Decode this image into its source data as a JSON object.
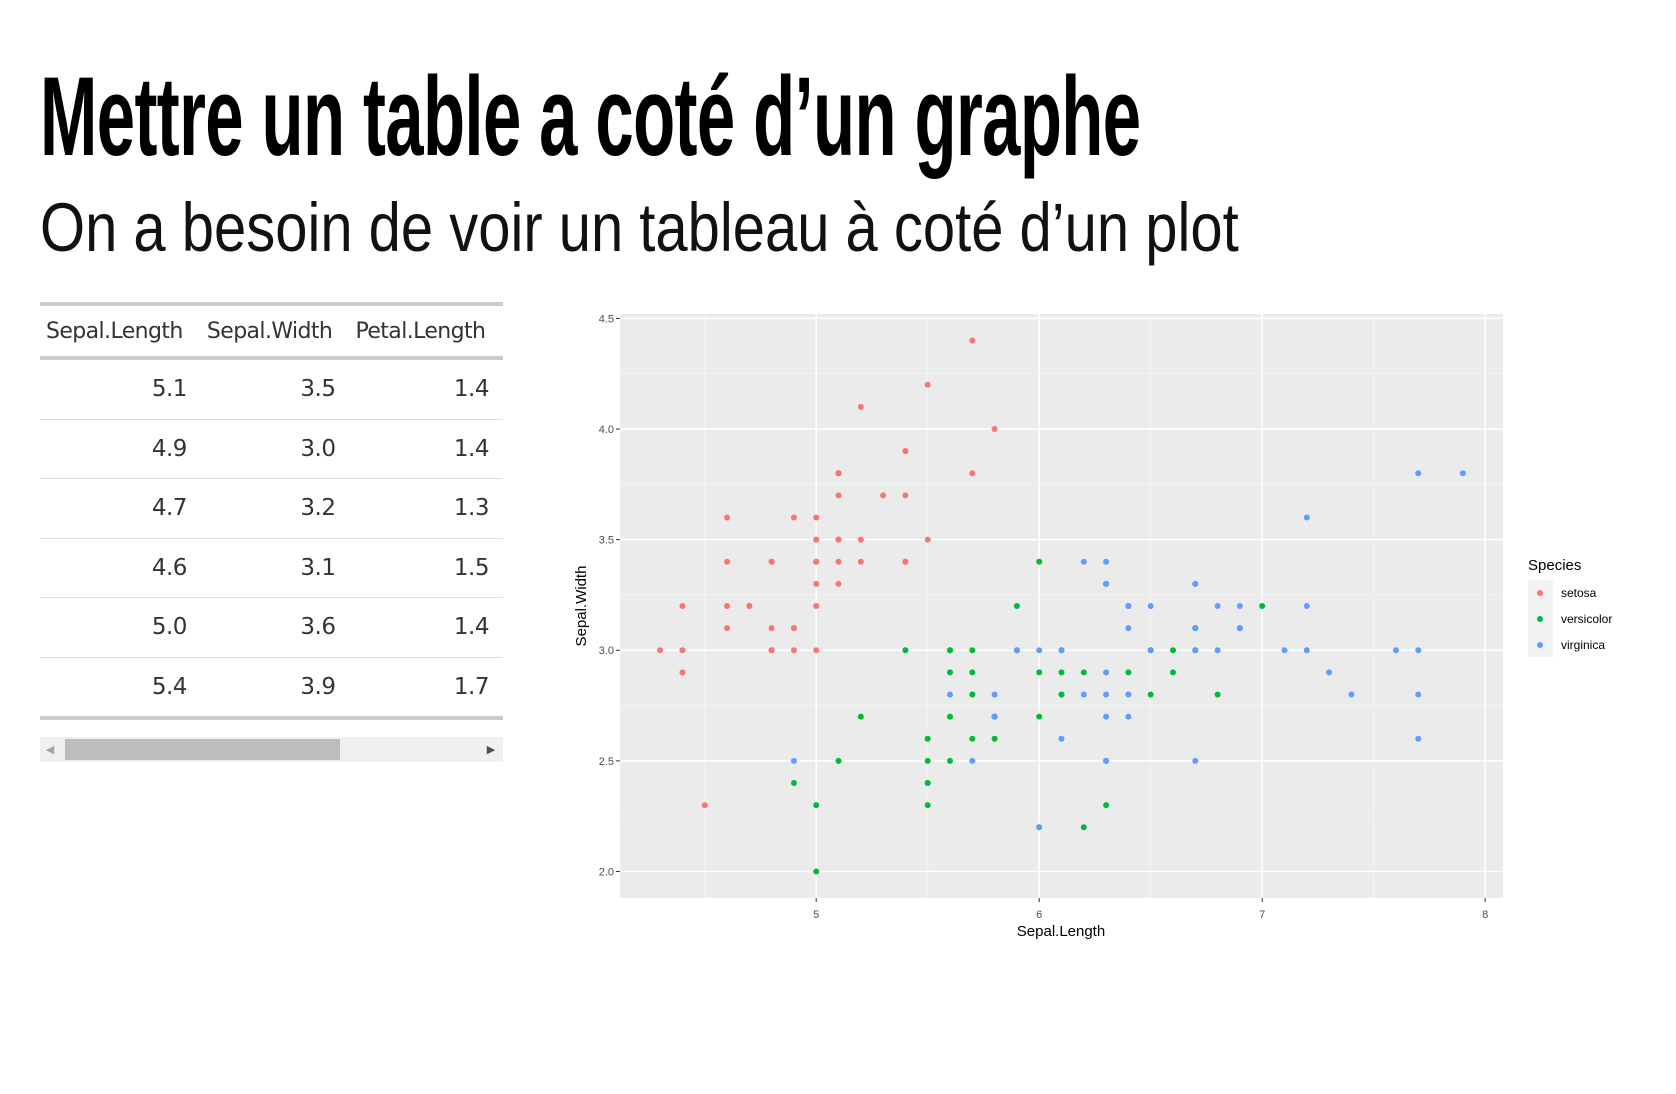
{
  "slide": {
    "title": "Mettre un table a coté d’un graphe",
    "subtitle": "On a besoin de voir un tableau à coté d’un plot"
  },
  "table": {
    "columns": [
      "Sepal.Length",
      "Sepal.Width",
      "Petal.Length"
    ],
    "rows": [
      [
        "5.1",
        "3.5",
        "1.4"
      ],
      [
        "4.9",
        "3.0",
        "1.4"
      ],
      [
        "4.7",
        "3.2",
        "1.3"
      ],
      [
        "4.6",
        "3.1",
        "1.5"
      ],
      [
        "5.0",
        "3.6",
        "1.4"
      ],
      [
        "5.4",
        "3.9",
        "1.7"
      ]
    ],
    "scroll_left_icon": "triangle-left",
    "scroll_right_icon": "triangle-right"
  },
  "chart_data": {
    "type": "scatter",
    "xlabel": "Sepal.Length",
    "ylabel": "Sepal.Width",
    "xlim": [
      4.12,
      8.08
    ],
    "ylim": [
      1.88,
      4.52
    ],
    "xticks": [
      "5",
      "6",
      "7",
      "8"
    ],
    "yticks": [
      "2.0",
      "2.5",
      "3.0",
      "3.5",
      "4.0",
      "4.5"
    ],
    "grid": true,
    "legend": {
      "title": "Species",
      "position": "right"
    },
    "panel_color": "#EBEBEB",
    "series": [
      {
        "name": "setosa",
        "color": "#F8766D",
        "points": [
          [
            5.1,
            3.5
          ],
          [
            4.9,
            3.0
          ],
          [
            4.7,
            3.2
          ],
          [
            4.6,
            3.1
          ],
          [
            5.0,
            3.6
          ],
          [
            5.4,
            3.9
          ],
          [
            4.6,
            3.4
          ],
          [
            5.0,
            3.4
          ],
          [
            4.4,
            2.9
          ],
          [
            4.9,
            3.1
          ],
          [
            5.4,
            3.7
          ],
          [
            4.8,
            3.4
          ],
          [
            4.8,
            3.0
          ],
          [
            4.3,
            3.0
          ],
          [
            5.8,
            4.0
          ],
          [
            5.7,
            4.4
          ],
          [
            5.4,
            3.9
          ],
          [
            5.1,
            3.5
          ],
          [
            5.7,
            3.8
          ],
          [
            5.1,
            3.8
          ],
          [
            5.4,
            3.4
          ],
          [
            5.1,
            3.7
          ],
          [
            4.6,
            3.6
          ],
          [
            5.1,
            3.3
          ],
          [
            4.8,
            3.4
          ],
          [
            5.0,
            3.0
          ],
          [
            5.0,
            3.4
          ],
          [
            5.2,
            3.5
          ],
          [
            5.2,
            3.4
          ],
          [
            4.7,
            3.2
          ],
          [
            4.8,
            3.1
          ],
          [
            5.4,
            3.4
          ],
          [
            5.2,
            4.1
          ],
          [
            5.5,
            4.2
          ],
          [
            4.9,
            3.1
          ],
          [
            5.0,
            3.2
          ],
          [
            5.5,
            3.5
          ],
          [
            4.9,
            3.6
          ],
          [
            4.4,
            3.0
          ],
          [
            5.1,
            3.4
          ],
          [
            5.0,
            3.5
          ],
          [
            4.5,
            2.3
          ],
          [
            4.4,
            3.2
          ],
          [
            5.0,
            3.5
          ],
          [
            5.1,
            3.8
          ],
          [
            4.8,
            3.0
          ],
          [
            5.1,
            3.8
          ],
          [
            4.6,
            3.2
          ],
          [
            5.3,
            3.7
          ],
          [
            5.0,
            3.3
          ]
        ]
      },
      {
        "name": "versicolor",
        "color": "#00BA38",
        "points": [
          [
            7.0,
            3.2
          ],
          [
            6.4,
            3.2
          ],
          [
            6.9,
            3.1
          ],
          [
            5.5,
            2.3
          ],
          [
            6.5,
            2.8
          ],
          [
            5.7,
            2.8
          ],
          [
            6.3,
            3.3
          ],
          [
            4.9,
            2.4
          ],
          [
            6.6,
            2.9
          ],
          [
            5.2,
            2.7
          ],
          [
            5.0,
            2.0
          ],
          [
            5.9,
            3.0
          ],
          [
            6.0,
            2.2
          ],
          [
            6.1,
            2.9
          ],
          [
            5.6,
            2.9
          ],
          [
            6.7,
            3.1
          ],
          [
            5.6,
            3.0
          ],
          [
            5.8,
            2.7
          ],
          [
            6.2,
            2.2
          ],
          [
            5.6,
            2.5
          ],
          [
            5.9,
            3.2
          ],
          [
            6.1,
            2.8
          ],
          [
            6.3,
            2.5
          ],
          [
            6.1,
            2.8
          ],
          [
            6.4,
            2.9
          ],
          [
            6.6,
            3.0
          ],
          [
            6.8,
            2.8
          ],
          [
            6.7,
            3.0
          ],
          [
            6.0,
            2.9
          ],
          [
            5.7,
            2.6
          ],
          [
            5.5,
            2.4
          ],
          [
            5.5,
            2.4
          ],
          [
            5.8,
            2.7
          ],
          [
            6.0,
            2.7
          ],
          [
            5.4,
            3.0
          ],
          [
            6.0,
            3.4
          ],
          [
            6.7,
            3.1
          ],
          [
            6.3,
            2.3
          ],
          [
            5.6,
            3.0
          ],
          [
            5.5,
            2.5
          ],
          [
            5.5,
            2.6
          ],
          [
            6.1,
            3.0
          ],
          [
            5.8,
            2.6
          ],
          [
            5.0,
            2.3
          ],
          [
            5.6,
            2.7
          ],
          [
            5.7,
            3.0
          ],
          [
            5.7,
            2.9
          ],
          [
            6.2,
            2.9
          ],
          [
            5.1,
            2.5
          ],
          [
            5.7,
            2.8
          ]
        ]
      },
      {
        "name": "virginica",
        "color": "#619CFF",
        "points": [
          [
            6.3,
            3.3
          ],
          [
            5.8,
            2.7
          ],
          [
            7.1,
            3.0
          ],
          [
            6.3,
            2.9
          ],
          [
            6.5,
            3.0
          ],
          [
            7.6,
            3.0
          ],
          [
            4.9,
            2.5
          ],
          [
            7.3,
            2.9
          ],
          [
            6.7,
            2.5
          ],
          [
            7.2,
            3.6
          ],
          [
            6.5,
            3.2
          ],
          [
            6.4,
            2.7
          ],
          [
            6.8,
            3.0
          ],
          [
            5.7,
            2.5
          ],
          [
            5.8,
            2.8
          ],
          [
            6.4,
            3.2
          ],
          [
            6.5,
            3.0
          ],
          [
            7.7,
            3.8
          ],
          [
            7.7,
            2.6
          ],
          [
            6.0,
            2.2
          ],
          [
            6.9,
            3.2
          ],
          [
            5.6,
            2.8
          ],
          [
            7.7,
            2.8
          ],
          [
            6.3,
            2.7
          ],
          [
            6.7,
            3.3
          ],
          [
            7.2,
            3.2
          ],
          [
            6.2,
            2.8
          ],
          [
            6.1,
            3.0
          ],
          [
            6.4,
            2.8
          ],
          [
            7.2,
            3.0
          ],
          [
            7.4,
            2.8
          ],
          [
            7.9,
            3.8
          ],
          [
            6.4,
            2.8
          ],
          [
            6.3,
            2.8
          ],
          [
            6.1,
            2.6
          ],
          [
            7.7,
            3.0
          ],
          [
            6.3,
            3.4
          ],
          [
            6.4,
            3.1
          ],
          [
            6.0,
            3.0
          ],
          [
            6.9,
            3.1
          ],
          [
            6.7,
            3.1
          ],
          [
            6.9,
            3.1
          ],
          [
            5.8,
            2.7
          ],
          [
            6.8,
            3.2
          ],
          [
            6.7,
            3.3
          ],
          [
            6.7,
            3.0
          ],
          [
            6.3,
            2.5
          ],
          [
            6.5,
            3.0
          ],
          [
            6.2,
            3.4
          ],
          [
            5.9,
            3.0
          ]
        ]
      }
    ]
  }
}
